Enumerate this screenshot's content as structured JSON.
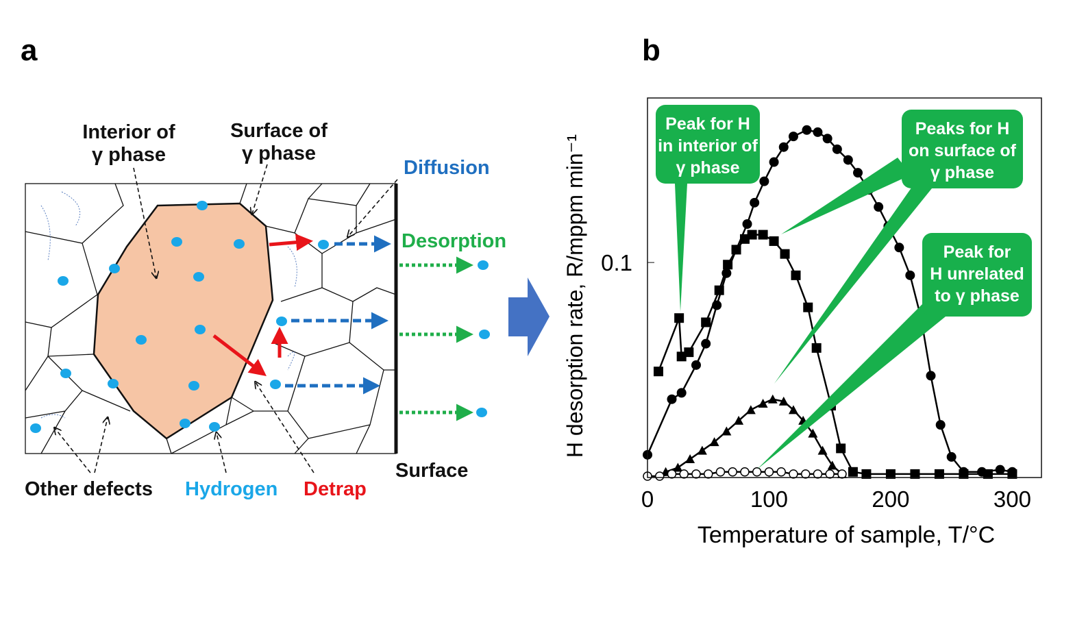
{
  "panel_a": {
    "label": "a",
    "interior": [
      "Interior of",
      "γ phase"
    ],
    "surface_of": [
      "Surface of",
      "γ phase"
    ],
    "diffusion": "Diffusion",
    "desorption": "Desorption",
    "other_defects": "Other defects",
    "hydrogen": "Hydrogen",
    "detrap": "Detrap",
    "surface": "Surface"
  },
  "chart_data": {
    "type": "line",
    "label": "b",
    "xlabel": "Temperature of sample, T/°C",
    "ylabel": "H desorption rate, R/mppm min⁻¹",
    "xlim": [
      0,
      324
    ],
    "ylim": [
      0,
      0.177
    ],
    "xticks": [
      0,
      100,
      200,
      300
    ],
    "yticks": [
      0.1
    ],
    "series": [
      {
        "marker": "square",
        "color": "#000000",
        "x": [
          9,
          26,
          28,
          34,
          48,
          59,
          66,
          73,
          80,
          86,
          95,
          104,
          113,
          122,
          132,
          139,
          151,
          159,
          169,
          180,
          200,
          220,
          240,
          260,
          280,
          300
        ],
        "values": [
          0.049,
          0.074,
          0.056,
          0.058,
          0.072,
          0.087,
          0.099,
          0.106,
          0.111,
          0.113,
          0.113,
          0.11,
          0.104,
          0.094,
          0.079,
          0.06,
          0.033,
          0.013,
          0.002,
          0.001,
          0.001,
          0.001,
          0.001,
          0.001,
          0.001,
          0.001
        ]
      },
      {
        "marker": "circle",
        "color": "#000000",
        "x": [
          0,
          20,
          28,
          40,
          48,
          57,
          65,
          73,
          82,
          88,
          96,
          104,
          112,
          120,
          131,
          140,
          148,
          156,
          165,
          173,
          182,
          190,
          198,
          207,
          216,
          225,
          233,
          241,
          250,
          260,
          275,
          290,
          300
        ],
        "values": [
          0.01,
          0.036,
          0.039,
          0.052,
          0.062,
          0.08,
          0.095,
          0.106,
          0.118,
          0.128,
          0.138,
          0.147,
          0.154,
          0.159,
          0.162,
          0.161,
          0.158,
          0.153,
          0.148,
          0.142,
          0.134,
          0.126,
          0.117,
          0.107,
          0.094,
          0.074,
          0.047,
          0.024,
          0.009,
          0.002,
          0.002,
          0.003,
          0.002
        ]
      },
      {
        "marker": "triangle",
        "color": "#000000",
        "x": [
          15,
          25,
          35,
          45,
          55,
          65,
          75,
          85,
          95,
          103,
          112,
          120,
          128,
          136,
          144,
          152,
          160
        ],
        "values": [
          0.002,
          0.004,
          0.008,
          0.012,
          0.016,
          0.021,
          0.026,
          0.031,
          0.034,
          0.036,
          0.035,
          0.031,
          0.026,
          0.02,
          0.012,
          0.005,
          0.001
        ]
      },
      {
        "marker": "open-circle",
        "color": "#000000",
        "x": [
          0,
          10,
          20,
          30,
          40,
          50,
          60,
          70,
          80,
          90,
          100,
          110,
          120,
          130,
          140,
          150,
          160
        ],
        "values": [
          0,
          0,
          0.001,
          0.001,
          0.001,
          0.001,
          0.002,
          0.002,
          0.002,
          0.002,
          0.002,
          0.002,
          0.001,
          0.001,
          0.001,
          0.001,
          0.001
        ]
      }
    ],
    "annotations": [
      [
        "Peak for H",
        "in interior of",
        "γ phase"
      ],
      [
        "Peaks for H",
        "on surface of",
        "γ phase"
      ],
      [
        "Peak for",
        "H unrelated",
        "to γ phase"
      ]
    ]
  }
}
